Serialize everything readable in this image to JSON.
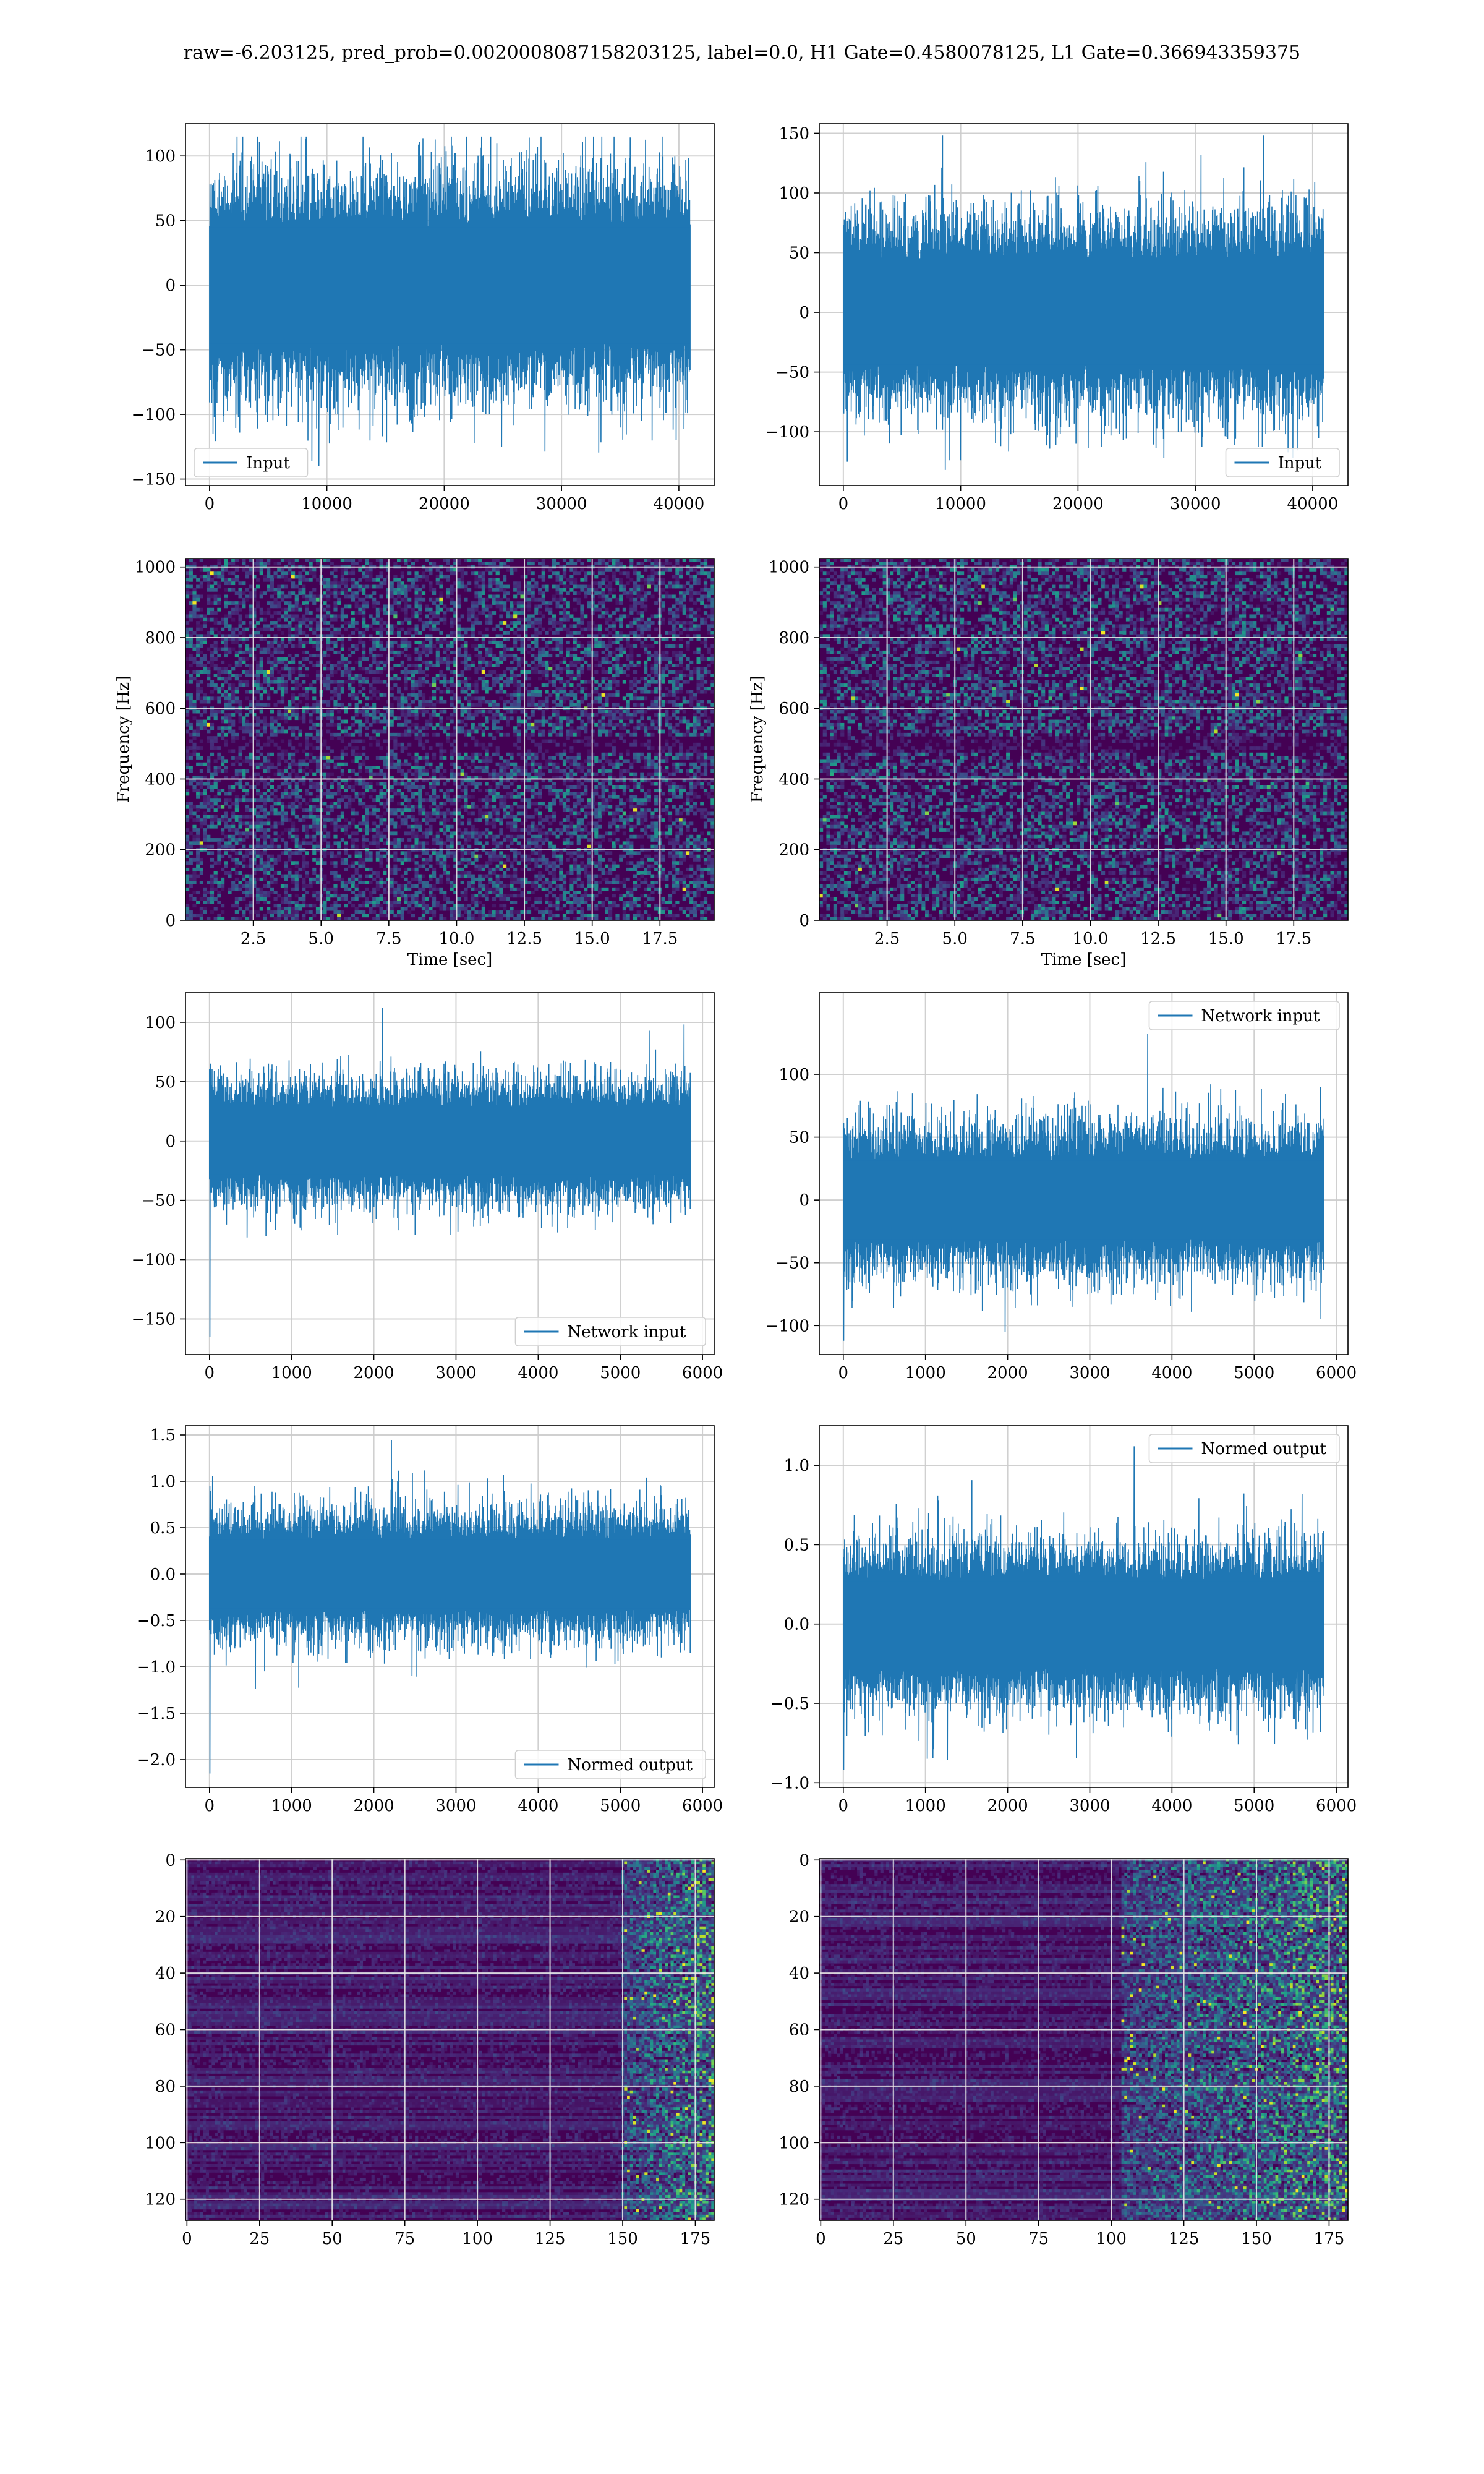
{
  "figure": {
    "suptitle": "raw=-6.203125, pred_prob=0.0020008087158203125, label=0.0, H1 Gate=0.4580078125, L1 Gate=0.366943359375"
  },
  "colors": {
    "line": "#1f77b4",
    "grid": "#cccccc",
    "viridis_low": "#440154",
    "viridis_high": "#fde725"
  },
  "chart_data": [
    {
      "id": "input-h1",
      "type": "line",
      "legend": "lower-left",
      "series": [
        {
          "name": "Input",
          "amplitude": 100,
          "peak_max": 115,
          "peak_min": -140
        }
      ],
      "x_range": [
        0,
        40960
      ],
      "xlim": [
        -2048,
        43008
      ],
      "ylim": [
        -155,
        125
      ],
      "xticks": [
        0,
        10000,
        20000,
        30000,
        40000
      ],
      "xtick_labels": [
        "0",
        "10000",
        "20000",
        "30000",
        "40000"
      ],
      "yticks": [
        -150,
        -100,
        -50,
        0,
        50,
        100
      ],
      "ytick_labels": [
        "−150",
        "−100",
        "−50",
        "0",
        "50",
        "100"
      ],
      "xlabel": "",
      "ylabel": "",
      "grid": true
    },
    {
      "id": "input-l1",
      "type": "line",
      "legend": "lower-right",
      "series": [
        {
          "name": "Input",
          "amplitude": 97,
          "peak_max": 148,
          "peak_min": -132
        }
      ],
      "x_range": [
        0,
        40960
      ],
      "xlim": [
        -2048,
        43008
      ],
      "ylim": [
        -145,
        158
      ],
      "xticks": [
        0,
        10000,
        20000,
        30000,
        40000
      ],
      "xtick_labels": [
        "0",
        "10000",
        "20000",
        "30000",
        "40000"
      ],
      "yticks": [
        -100,
        -50,
        0,
        50,
        100,
        150
      ],
      "ytick_labels": [
        "−100",
        "−50",
        "0",
        "50",
        "100",
        "150"
      ],
      "xlabel": "",
      "ylabel": "",
      "grid": true
    },
    {
      "id": "spec-h1",
      "type": "heatmap",
      "colormap": "viridis",
      "variant": "spectrogram",
      "xlim": [
        0,
        19.5
      ],
      "ylim": [
        0,
        1024
      ],
      "xticks": [
        2.5,
        5.0,
        7.5,
        10.0,
        12.5,
        15.0,
        17.5
      ],
      "xtick_labels": [
        "2.5",
        "5.0",
        "7.5",
        "10.0",
        "12.5",
        "15.0",
        "17.5"
      ],
      "yticks": [
        0,
        200,
        400,
        600,
        800,
        1000
      ],
      "ytick_labels": [
        "0",
        "200",
        "400",
        "600",
        "800",
        "1000"
      ],
      "xlabel": "Time [sec]",
      "ylabel": "Frequency [Hz]",
      "grid": true
    },
    {
      "id": "spec-l1",
      "type": "heatmap",
      "colormap": "viridis",
      "variant": "spectrogram",
      "xlim": [
        0,
        19.5
      ],
      "ylim": [
        0,
        1024
      ],
      "xticks": [
        2.5,
        5.0,
        7.5,
        10.0,
        12.5,
        15.0,
        17.5
      ],
      "xtick_labels": [
        "2.5",
        "5.0",
        "7.5",
        "10.0",
        "12.5",
        "15.0",
        "17.5"
      ],
      "yticks": [
        0,
        200,
        400,
        600,
        800,
        1000
      ],
      "ytick_labels": [
        "0",
        "200",
        "400",
        "600",
        "800",
        "1000"
      ],
      "xlabel": "Time [sec]",
      "ylabel": "Frequency [Hz]",
      "grid": true
    },
    {
      "id": "net-h1",
      "type": "line",
      "legend": "lower-right",
      "series": [
        {
          "name": "Network input",
          "amplitude": 62,
          "peak_max": 112,
          "peak_min": -165
        }
      ],
      "x_range": [
        0,
        5850
      ],
      "xlim": [
        -292,
        6142
      ],
      "ylim": [
        -180,
        125
      ],
      "xticks": [
        0,
        1000,
        2000,
        3000,
        4000,
        5000,
        6000
      ],
      "xtick_labels": [
        "0",
        "1000",
        "2000",
        "3000",
        "4000",
        "5000",
        "6000"
      ],
      "yticks": [
        -150,
        -100,
        -50,
        0,
        50,
        100
      ],
      "ytick_labels": [
        "−150",
        "−100",
        "−50",
        "0",
        "50",
        "100"
      ],
      "xlabel": "",
      "ylabel": "",
      "grid": true
    },
    {
      "id": "net-l1",
      "type": "line",
      "legend": "upper-right",
      "series": [
        {
          "name": "Network input",
          "amplitude": 70,
          "peak_max": 132,
          "peak_min": -112
        }
      ],
      "x_range": [
        0,
        5850
      ],
      "xlim": [
        -292,
        6142
      ],
      "ylim": [
        -123,
        165
      ],
      "xticks": [
        0,
        1000,
        2000,
        3000,
        4000,
        5000,
        6000
      ],
      "xtick_labels": [
        "0",
        "1000",
        "2000",
        "3000",
        "4000",
        "5000",
        "6000"
      ],
      "yticks": [
        -100,
        -50,
        0,
        50,
        100
      ],
      "ytick_labels": [
        "−100",
        "−50",
        "0",
        "50",
        "100"
      ],
      "xlabel": "",
      "ylabel": "",
      "grid": true
    },
    {
      "id": "norm-h1",
      "type": "line",
      "legend": "lower-right",
      "series": [
        {
          "name": "Normed output",
          "amplitude": 0.82,
          "peak_max": 1.44,
          "peak_min": -2.15
        }
      ],
      "x_range": [
        0,
        5850
      ],
      "xlim": [
        -292,
        6142
      ],
      "ylim": [
        -2.3,
        1.6
      ],
      "xticks": [
        0,
        1000,
        2000,
        3000,
        4000,
        5000,
        6000
      ],
      "xtick_labels": [
        "0",
        "1000",
        "2000",
        "3000",
        "4000",
        "5000",
        "6000"
      ],
      "yticks": [
        -2.0,
        -1.5,
        -1.0,
        -0.5,
        0.0,
        0.5,
        1.0,
        1.5
      ],
      "ytick_labels": [
        "−2.0",
        "−1.5",
        "−1.0",
        "−0.5",
        "0.0",
        "0.5",
        "1.0",
        "1.5"
      ],
      "xlabel": "",
      "ylabel": "",
      "grid": true
    },
    {
      "id": "norm-l1",
      "type": "line",
      "legend": "upper-right",
      "series": [
        {
          "name": "Normed output",
          "amplitude": 0.6,
          "peak_max": 1.12,
          "peak_min": -0.92
        }
      ],
      "x_range": [
        0,
        5850
      ],
      "xlim": [
        -292,
        6142
      ],
      "ylim": [
        -1.03,
        1.25
      ],
      "xticks": [
        0,
        1000,
        2000,
        3000,
        4000,
        5000,
        6000
      ],
      "xtick_labels": [
        "0",
        "1000",
        "2000",
        "3000",
        "4000",
        "5000",
        "6000"
      ],
      "yticks": [
        -1.0,
        -0.5,
        0.0,
        0.5,
        1.0
      ],
      "ytick_labels": [
        "−1.0",
        "−0.5",
        "0.0",
        "0.5",
        "1.0"
      ],
      "xlabel": "",
      "ylabel": "",
      "grid": true
    },
    {
      "id": "feat-h1",
      "type": "heatmap",
      "colormap": "viridis",
      "variant": "features",
      "y_inverted": true,
      "xlim": [
        -0.5,
        181.5
      ],
      "ylim": [
        -0.5,
        127.5
      ],
      "xticks": [
        0,
        25,
        50,
        75,
        100,
        125,
        150,
        175
      ],
      "xtick_labels": [
        "0",
        "25",
        "50",
        "75",
        "100",
        "125",
        "150",
        "175"
      ],
      "yticks": [
        0,
        20,
        40,
        60,
        80,
        100,
        120
      ],
      "ytick_labels": [
        "0",
        "20",
        "40",
        "60",
        "80",
        "100",
        "120"
      ],
      "xlabel": "",
      "ylabel": "",
      "grid": true,
      "active_from": 0.82
    },
    {
      "id": "feat-l1",
      "type": "heatmap",
      "colormap": "viridis",
      "variant": "features",
      "y_inverted": true,
      "xlim": [
        -0.5,
        181.5
      ],
      "ylim": [
        -0.5,
        127.5
      ],
      "xticks": [
        0,
        25,
        50,
        75,
        100,
        125,
        150,
        175
      ],
      "xtick_labels": [
        "0",
        "25",
        "50",
        "75",
        "100",
        "125",
        "150",
        "175"
      ],
      "yticks": [
        0,
        20,
        40,
        60,
        80,
        100,
        120
      ],
      "ytick_labels": [
        "0",
        "20",
        "40",
        "60",
        "80",
        "100",
        "120"
      ],
      "xlabel": "",
      "ylabel": "",
      "grid": true,
      "active_from": 0.57
    }
  ]
}
